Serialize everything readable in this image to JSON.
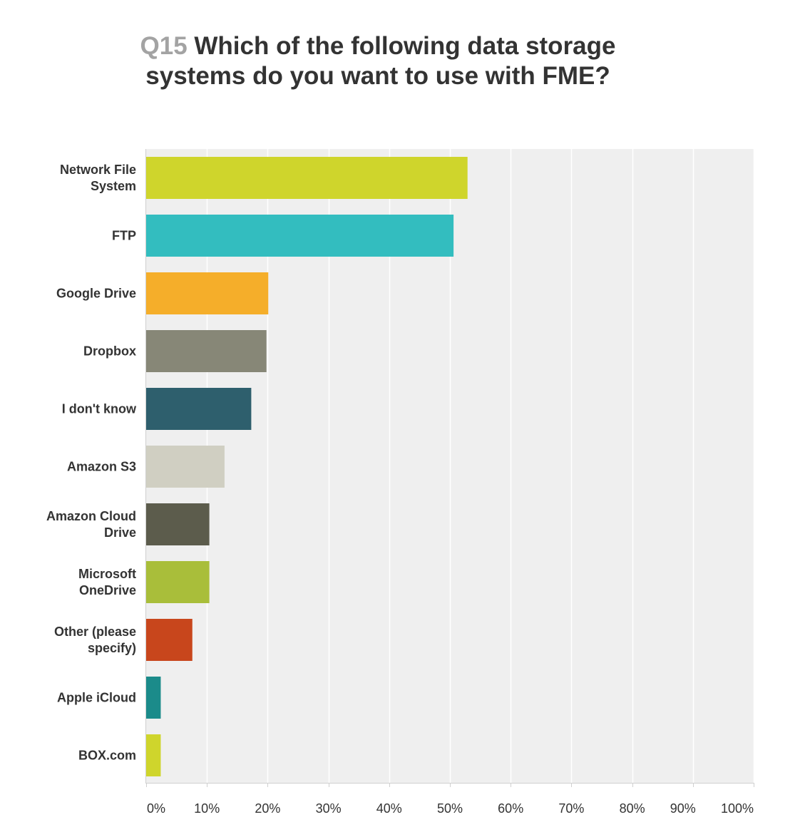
{
  "title": {
    "question_number": "Q15",
    "line1": "Which of the following data storage",
    "line2": "systems do you want to use with FME?"
  },
  "chart_data": {
    "type": "bar",
    "orientation": "horizontal",
    "categories": [
      [
        "Network File",
        "System"
      ],
      [
        "FTP"
      ],
      [
        "Google Drive"
      ],
      [
        "Dropbox"
      ],
      [
        "I don't know"
      ],
      [
        "Amazon S3"
      ],
      [
        "Amazon Cloud",
        "Drive"
      ],
      [
        "Microsoft",
        "OneDrive"
      ],
      [
        "Other (please",
        "specify)"
      ],
      [
        "Apple iCloud"
      ],
      [
        "BOX.com"
      ]
    ],
    "values": [
      52.9,
      50.6,
      20.1,
      19.8,
      17.3,
      12.9,
      10.4,
      10.4,
      7.6,
      2.4,
      2.4
    ],
    "colors": [
      "#cfd52c",
      "#33bdbf",
      "#f5ae2a",
      "#878777",
      "#2e5f6d",
      "#d0cfc2",
      "#5c5c4c",
      "#a9be3a",
      "#c8461c",
      "#1b8b8a",
      "#cfd52c"
    ],
    "xlim": [
      0,
      100
    ],
    "x_ticks": [
      0,
      10,
      20,
      30,
      40,
      50,
      60,
      70,
      80,
      90,
      100
    ],
    "x_tick_labels": [
      "0%",
      "10%",
      "20%",
      "30%",
      "40%",
      "50%",
      "60%",
      "70%",
      "80%",
      "90%",
      "100%"
    ],
    "grid": true,
    "plot_background": "#efefef"
  }
}
